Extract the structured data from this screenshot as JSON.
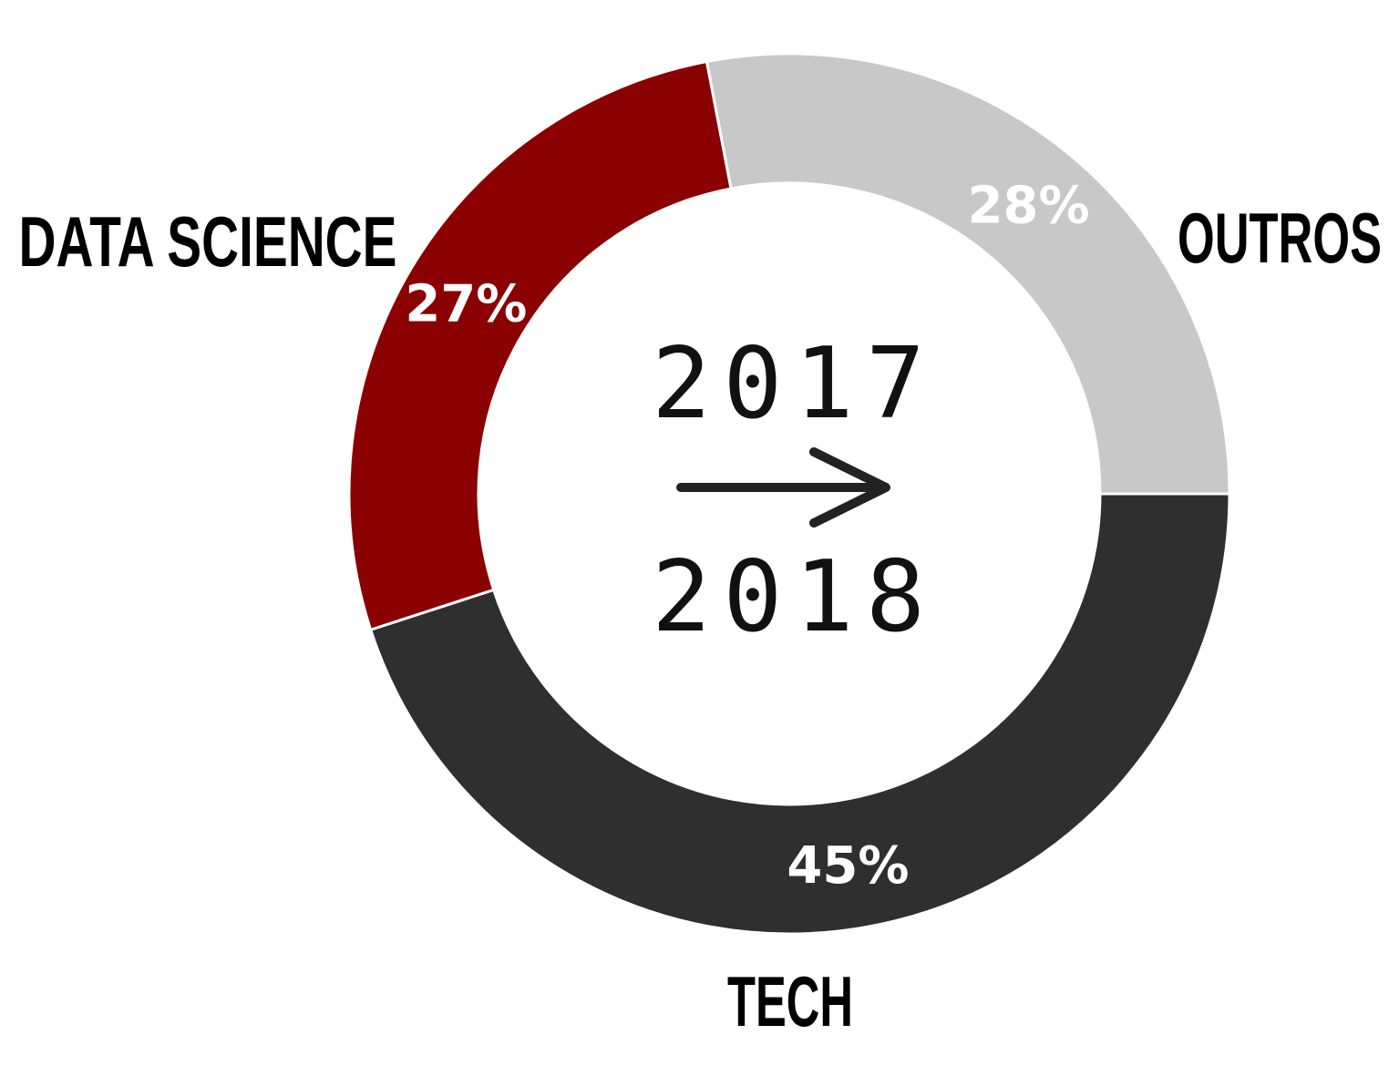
{
  "chart_data": {
    "type": "pie",
    "donut": true,
    "categories": [
      "TECH",
      "DATA SCIENCE",
      "OUTROS"
    ],
    "values": [
      45,
      27,
      28
    ],
    "value_labels": [
      "45%",
      "27%",
      "28%"
    ],
    "colors": [
      "#2f2f2f",
      "#8b0000",
      "#c8c8c8"
    ],
    "value_label_colors": [
      "#ffffff",
      "#ffffff",
      "#ffffff"
    ],
    "start_angle_deg": 0,
    "direction": "clockwise",
    "center": {
      "from_year": "2017",
      "to_year": "2018",
      "arrow_icon": "right-arrow-icon"
    }
  }
}
